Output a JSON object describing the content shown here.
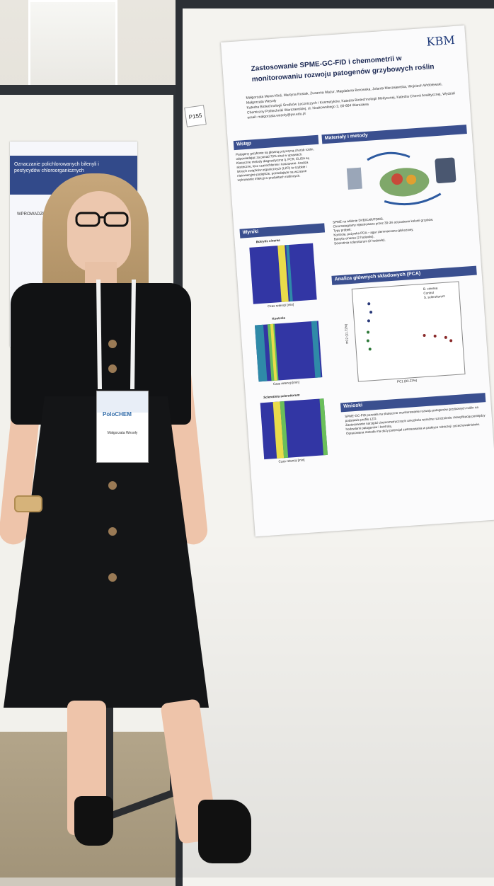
{
  "poster": {
    "tag": "P155",
    "logo": "KBM",
    "title_line1": "Zastosowanie SPME-GC-FID i chemometrii w",
    "title_line2": "monitorowaniu rozwoju patogenów grzybowych roślin",
    "authors": "Małgorzata Mews-Kłoś, Martyna Rosiak, Zuzanna Mazur, Magdalena Borowska, Jolanta Mierzejewska, Wojciech Wróblewski, Małgorzata Wesoły",
    "affiliation": "Katedra Biotechnologii Środków Leczniczych i Kosmetyków, Katedra Biotechnologii Medycznej, Katedra Chemii Analitycznej, Wydział Chemiczny Politechniki Warszawskiej, ul. Noakowskiego 3, 00-664 Warszawa",
    "email": "email: malgorzata.wesoly@pw.edu.pl",
    "sections": {
      "wstep": "Wstęp",
      "metody": "Materiały i metody",
      "wyniki": "Wyniki",
      "pca": "Analiza głównych składowych (PCA)",
      "wnioski": "Wnioski"
    },
    "wstep_text": "Patogeny grzybowe są główną przyczyną chorób roślin, odpowiadając za ponad 70% strat w uprawach. Klasyczne metody diagnostyczne tj. PCR, ELISA są skuteczne, lecz czasochłonne i kosztowne. Analiza lotnych związków organicznych (LZO) to szybkie i nieinwazyjne podejście, pozwalające na wczesne wykrywanie infekcji w produktach roślinnych.",
    "metody_text": [
      "SPME na włóknie DVB/CAR/PDMS.",
      "Chromatogramy rejestrowano przez 30 dni od posiewu kolonii grzybów.",
      "Typy próbek:",
      "Kontrola, pożywka PDA – agar ziemniaczano-glukozowy,",
      "Botrytis cinerea (2 hodowle),",
      "Sclerotinia sclerotiorum (2 hodowle)."
    ],
    "heatmap_titles": [
      "Botrytis cinerea",
      "Kontrola",
      "Sclerotinia sclerotiorum"
    ],
    "heatmap_xlabel": "Czas retencji [min]",
    "pca": {
      "legend": [
        "B. cinerea",
        "Control",
        "S. sclerotiorum"
      ],
      "xlabel": "PC1 (83.23%)",
      "ylabel": "PC2 (11.72%)",
      "colors": {
        "B. cinerea": "#8a2a2a",
        "Control": "#2f7a3a",
        "S. sclerotiorum": "#2a3a7a"
      }
    },
    "wnioski_text": [
      "SPME-GC-FID pozwala na skuteczne monitorowanie rozwoju patogenów grzybowych roślin na podstawie profilu LZO.",
      "Zastosowanie narzędzi chemometrycznych umożliwia wyraźne rozróżnienie i klasyfikację pomiędzy hodowlami patogenów i kontrolą.",
      "Opracowana metoda ma duży potencjał zastosowania w praktyce rolniczej i przechowalnictwie."
    ]
  },
  "left_poster": {
    "title": "Oznaczanie polichlorowanych bifenyli i pestycydów chloroorganicznych",
    "section": "WPROWADZENIE"
  },
  "badge": {
    "event": "PoloCHEM",
    "name": "Małgorzata Wesoły"
  }
}
